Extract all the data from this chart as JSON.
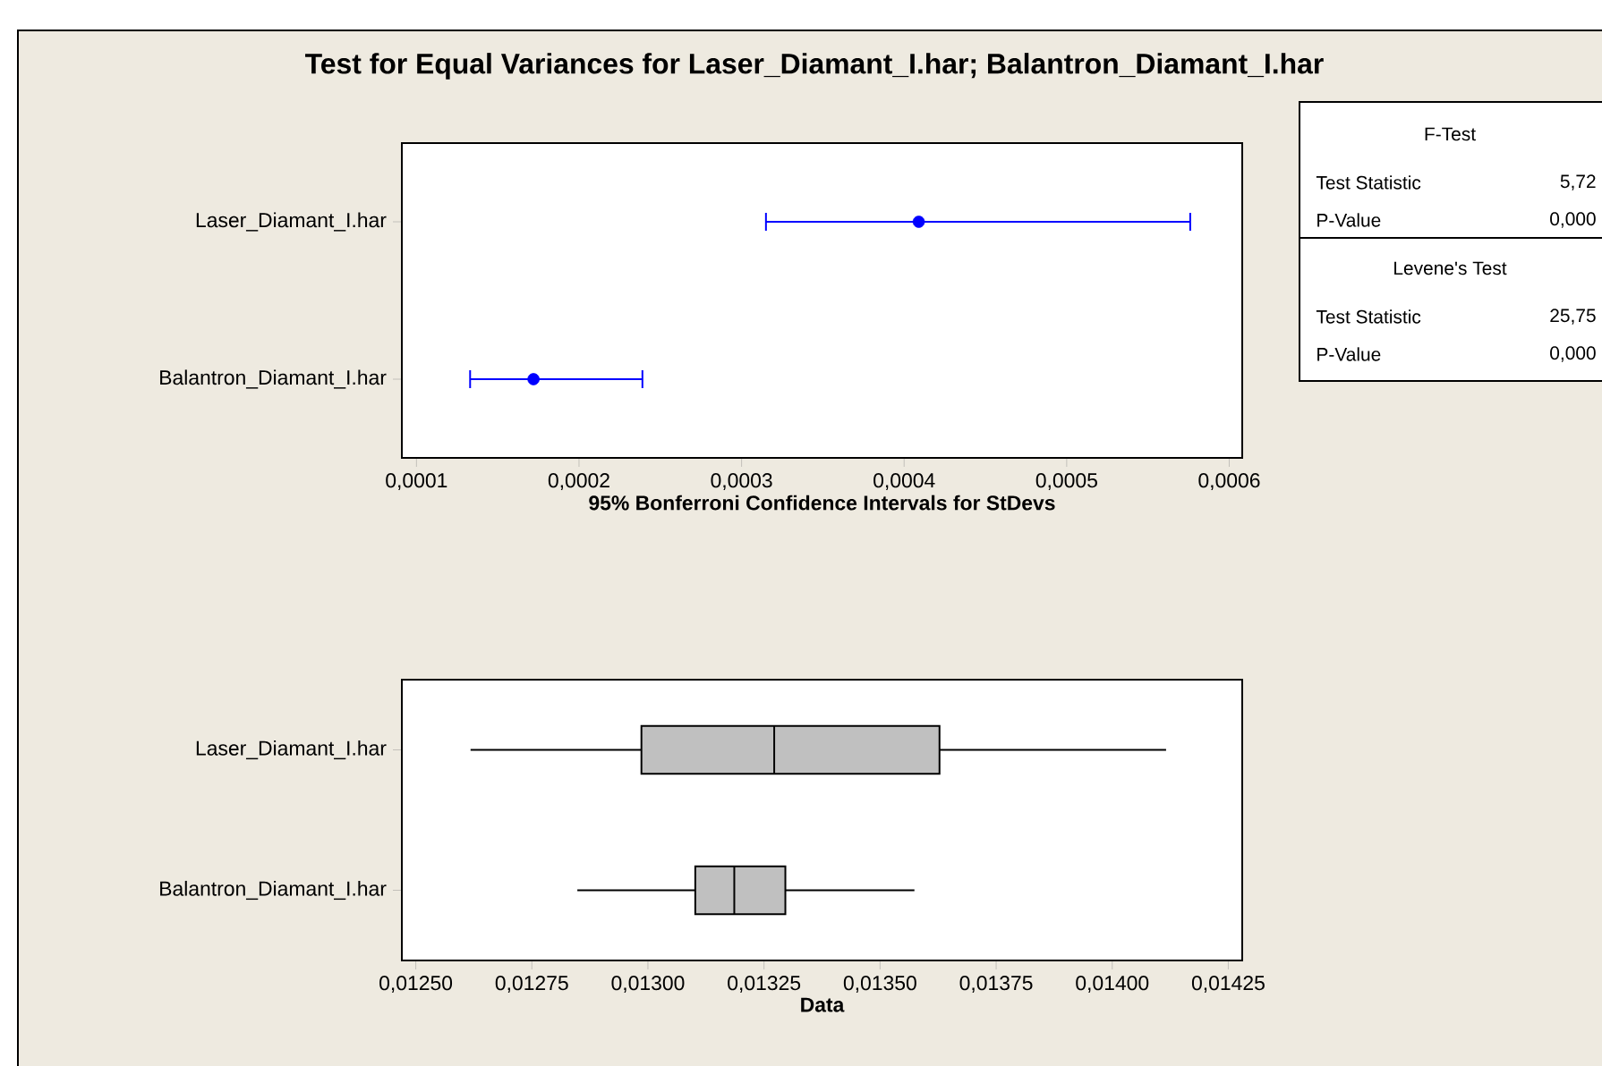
{
  "chart_data": [
    {
      "type": "scatter",
      "title": "Test for Equal Variances for Laser_Diamant_I.har; Balantron_Diamant_I.har",
      "orientation": "horizontal",
      "categories": [
        "Laser_Diamant_I.har",
        "Balantron_Diamant_I.har"
      ],
      "values": [
        0.000409,
        0.000172
      ],
      "errors": [
        [
          0.000315,
          0.000576
        ],
        [
          0.000133,
          0.000239
        ]
      ],
      "color": "#0000ff",
      "marker": "circle",
      "xlabel": "95% Bonferroni Confidence Intervals for StDevs",
      "xlim": [
        9.1e-05,
        0.000608
      ],
      "xticks": [
        {
          "value": 0.0001,
          "label": "0,0001"
        },
        {
          "value": 0.0002,
          "label": "0,0002"
        },
        {
          "value": 0.0003,
          "label": "0,0003"
        },
        {
          "value": 0.0004,
          "label": "0,0004"
        },
        {
          "value": 0.0005,
          "label": "0,0005"
        },
        {
          "value": 0.0006,
          "label": "0,0006"
        }
      ]
    },
    {
      "type": "box",
      "orientation": "horizontal",
      "categories": [
        "Laser_Diamant_I.har",
        "Balantron_Diamant_I.har"
      ],
      "color": "#c0c0c0",
      "xlabel": "Data",
      "xlim": [
        0.01247,
        0.01428
      ],
      "boxes": [
        {
          "low": 0.012618,
          "q1": 0.012986,
          "median": 0.013272,
          "q3": 0.013628,
          "high": 0.014116
        },
        {
          "low": 0.012848,
          "q1": 0.013102,
          "median": 0.013186,
          "q3": 0.013296,
          "high": 0.013574
        }
      ],
      "xticks": [
        {
          "value": 0.0125,
          "label": "0,01250"
        },
        {
          "value": 0.01275,
          "label": "0,01275"
        },
        {
          "value": 0.013,
          "label": "0,01300"
        },
        {
          "value": 0.01325,
          "label": "0,01325"
        },
        {
          "value": 0.0135,
          "label": "0,01350"
        },
        {
          "value": 0.01375,
          "label": "0,01375"
        },
        {
          "value": 0.014,
          "label": "0,01400"
        },
        {
          "value": 0.01425,
          "label": "0,01425"
        }
      ]
    },
    {
      "type": "other",
      "annotations": [
        "F-Test",
        "Test Statistic",
        "5,72",
        "P-Value",
        "0,000",
        "Levene's Test",
        "Test Statistic",
        "25,75",
        "P-Value",
        "0,000"
      ]
    }
  ]
}
